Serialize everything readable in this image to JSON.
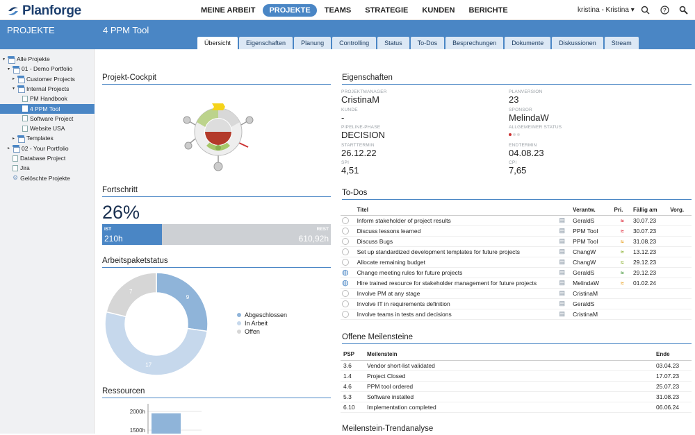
{
  "app": {
    "brand": "Planforge",
    "user": "kristina - Kristina"
  },
  "nav": {
    "items": [
      "MEINE ARBEIT",
      "PROJEKTE",
      "TEAMS",
      "STRATEGIE",
      "KUNDEN",
      "BERICHTE"
    ]
  },
  "sidebar": {
    "title": "PROJEKTE",
    "tree": [
      {
        "label": "Alle Projekte",
        "level": 0,
        "arrow": "▾",
        "type": "folder"
      },
      {
        "label": "01 - Demo Portfolio",
        "level": 1,
        "arrow": "▾",
        "type": "folder"
      },
      {
        "label": "Customer Projects",
        "level": 2,
        "arrow": "▸",
        "type": "folder"
      },
      {
        "label": "Internal Projects",
        "level": 2,
        "arrow": "▾",
        "type": "folder"
      },
      {
        "label": "PM Handbook",
        "level": 3,
        "arrow": "",
        "type": "doc"
      },
      {
        "label": "4 PPM Tool",
        "level": 3,
        "arrow": "",
        "type": "doc",
        "selected": true
      },
      {
        "label": "Software Project",
        "level": 3,
        "arrow": "",
        "type": "doc"
      },
      {
        "label": "Website USA",
        "level": 3,
        "arrow": "",
        "type": "doc"
      },
      {
        "label": "Templates",
        "level": 2,
        "arrow": "▸",
        "type": "folder"
      },
      {
        "label": "02 - Your Portfolio",
        "level": 1,
        "arrow": "▸",
        "type": "folder"
      },
      {
        "label": "Database Project",
        "level": 1,
        "arrow": "",
        "type": "doc"
      },
      {
        "label": "Jira",
        "level": 1,
        "arrow": "",
        "type": "doc"
      },
      {
        "label": "Gelöschte Projekte",
        "level": 1,
        "arrow": "",
        "type": "gear"
      }
    ]
  },
  "project": {
    "title": "4 PPM Tool",
    "tabs": [
      "Übersicht",
      "Eigenschaften",
      "Planung",
      "Controlling",
      "Status",
      "To-Dos",
      "Besprechungen",
      "Dokumente",
      "Diskussionen",
      "Stream"
    ]
  },
  "cockpit": {
    "title": "Projekt-Cockpit"
  },
  "progress": {
    "title": "Fortschritt",
    "percent_label": "26%",
    "percent": 0.26,
    "ist_label": "IST",
    "ist_value": "210h",
    "rest_label": "REST",
    "rest_value": "610,92h"
  },
  "workpackages": {
    "title": "Arbeitspaketstatus"
  },
  "resources": {
    "title": "Ressourcen"
  },
  "chart_data": [
    {
      "type": "pie",
      "title": "Arbeitspaketstatus",
      "categories": [
        "Abgeschlossen",
        "In Arbeit",
        "Offen"
      ],
      "values": [
        9,
        17,
        7
      ],
      "colors": [
        "#8fb4d9",
        "#c6d8ec",
        "#d6d6d6"
      ],
      "donut": true,
      "legend": "right"
    },
    {
      "type": "bar",
      "title": "Ressourcen",
      "categories": [
        ""
      ],
      "values": [
        1950
      ],
      "yticks": [
        "2000h",
        "1500h"
      ],
      "ylim": [
        0,
        2000
      ]
    }
  ],
  "properties": {
    "title": "Eigenschaften",
    "items": [
      {
        "label": "PROJEKTMANAGER",
        "value": "CristinaM"
      },
      {
        "label": "PLANVERSION",
        "value": "23"
      },
      {
        "label": "KUNDE",
        "value": "-"
      },
      {
        "label": "SPONSOR",
        "value": "MelindaW"
      },
      {
        "label": "PIPELINE-PHASE",
        "value": "DECISION"
      },
      {
        "label": "ALLGEMEINER STATUS",
        "value": ""
      },
      {
        "label": "STARTTERMIN",
        "value": "26.12.22"
      },
      {
        "label": "ENDTERMIN",
        "value": "04.08.23"
      },
      {
        "label": "SPI",
        "value": "4,51"
      },
      {
        "label": "CPI",
        "value": "7,65"
      }
    ]
  },
  "todos": {
    "title": "To-Dos",
    "headers": [
      "Titel",
      "Verantw.",
      "Pri.",
      "Fällig am",
      "Vorg."
    ],
    "rows": [
      {
        "title": "Inform stakeholder of project results",
        "owner": "GeraldS",
        "due": "30.07.23",
        "prio": "high",
        "icon": "none"
      },
      {
        "title": "Discuss lessons learned",
        "owner": "PPM Tool",
        "due": "30.07.23",
        "prio": "high",
        "icon": "none"
      },
      {
        "title": "Discuss Bugs",
        "owner": "PPM Tool",
        "due": "31.08.23",
        "prio": "medium",
        "icon": "none"
      },
      {
        "title": "Set up standardized development templates for future projects",
        "owner": "ChangW",
        "due": "13.12.23",
        "prio": "low",
        "icon": "none"
      },
      {
        "title": "Allocate remaining budget",
        "owner": "ChangW",
        "due": "29.12.23",
        "prio": "low",
        "icon": "none"
      },
      {
        "title": "Change meeting rules for future projects",
        "owner": "GeraldS",
        "due": "29.12.23",
        "prio": "lowest",
        "icon": "progress"
      },
      {
        "title": "Hire trained resource for stakeholder management for future projects",
        "owner": "MelindaW",
        "due": "01.02.24",
        "prio": "medium",
        "icon": "progress"
      },
      {
        "title": "Involve PM at any stage",
        "owner": "CristinaM",
        "due": "",
        "prio": "",
        "icon": "none"
      },
      {
        "title": "Involve IT in requirements definition",
        "owner": "GeraldS",
        "due": "",
        "prio": "",
        "icon": "none"
      },
      {
        "title": "Involve teams in tests and decisions",
        "owner": "CristinaM",
        "due": "",
        "prio": "",
        "icon": "none"
      }
    ]
  },
  "milestones": {
    "title": "Offene Meilensteine",
    "headers": [
      "PSP",
      "Meilenstein",
      "Ende"
    ],
    "rows": [
      {
        "psp": "3.6",
        "name": "Vendor short-list validated",
        "end": "03.04.23"
      },
      {
        "psp": "1.4",
        "name": "Project Closed",
        "end": "17.07.23"
      },
      {
        "psp": "4.6",
        "name": "PPM tool ordered",
        "end": "25.07.23"
      },
      {
        "psp": "5.3",
        "name": "Software installed",
        "end": "31.08.23"
      },
      {
        "psp": "6.10",
        "name": "Implementation completed",
        "end": "06.06.24"
      }
    ]
  },
  "trend": {
    "title": "Meilenstein-Trendanalyse"
  }
}
